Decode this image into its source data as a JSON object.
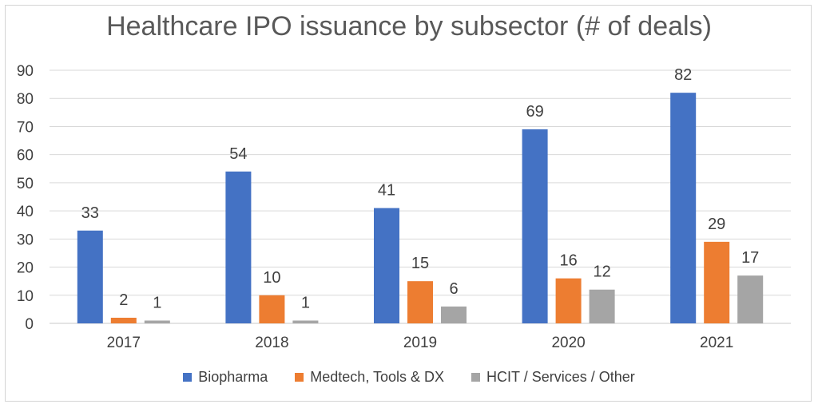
{
  "chart_data": {
    "type": "bar",
    "title": "Healthcare IPO issuance by subsector (# of deals)",
    "categories": [
      "2017",
      "2018",
      "2019",
      "2020",
      "2021"
    ],
    "series": [
      {
        "name": "Biopharma",
        "values": [
          33,
          54,
          41,
          69,
          82
        ],
        "color": "#4472c4"
      },
      {
        "name": "Medtech, Tools & DX",
        "values": [
          2,
          10,
          15,
          16,
          29
        ],
        "color": "#ed7d31"
      },
      {
        "name": "HCIT / Services / Other",
        "values": [
          1,
          1,
          6,
          12,
          17
        ],
        "color": "#a5a5a5"
      }
    ],
    "ylim": [
      0,
      90
    ],
    "yticks": [
      0,
      10,
      20,
      30,
      40,
      50,
      60,
      70,
      80,
      90
    ],
    "grid": true,
    "legend_position": "bottom"
  }
}
